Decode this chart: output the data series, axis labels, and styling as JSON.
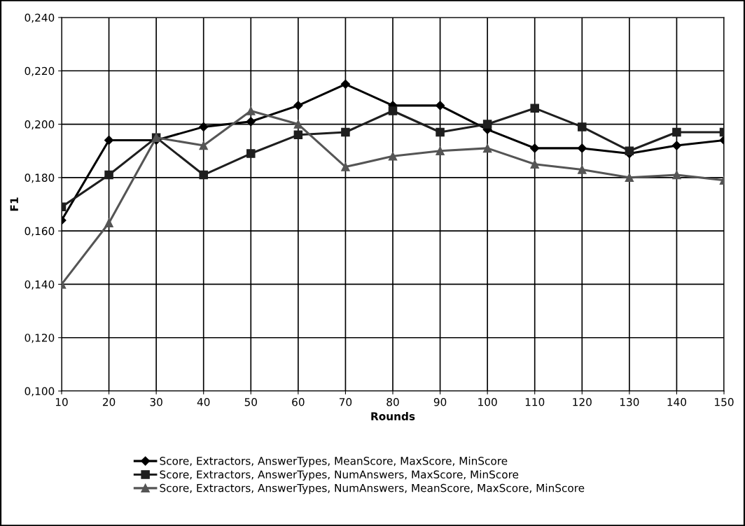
{
  "chart_data": {
    "type": "line",
    "xlabel": "Rounds",
    "ylabel": "F1",
    "x": [
      10,
      20,
      30,
      40,
      50,
      60,
      70,
      80,
      90,
      100,
      110,
      120,
      130,
      140,
      150
    ],
    "series": [
      {
        "name": "Score, Extractors, AnswerTypes, MeanScore, MaxScore, MinScore",
        "color": "#000000",
        "marker": "diamond",
        "values": [
          0.164,
          0.194,
          0.194,
          0.199,
          0.201,
          0.207,
          0.215,
          0.207,
          0.207,
          0.198,
          0.191,
          0.191,
          0.189,
          0.192,
          0.194
        ]
      },
      {
        "name": "Score, Extractors, AnswerTypes, NumAnswers, MaxScore, MinScore",
        "color": "#1e1e1e",
        "marker": "square",
        "values": [
          0.169,
          0.181,
          0.195,
          0.181,
          0.189,
          0.196,
          0.197,
          0.205,
          0.197,
          0.2,
          0.206,
          0.199,
          0.19,
          0.197,
          0.197
        ]
      },
      {
        "name": "Score, Extractors, AnswerTypes, NumAnswers, MeanScore, MaxScore, MinScore",
        "color": "#555555",
        "marker": "triangle",
        "values": [
          0.14,
          0.163,
          0.195,
          0.192,
          0.205,
          0.2,
          0.184,
          0.188,
          0.19,
          0.191,
          0.185,
          0.183,
          0.18,
          0.181,
          0.179
        ]
      }
    ],
    "xlim": [
      10,
      150
    ],
    "xticks": [
      10,
      20,
      30,
      40,
      50,
      60,
      70,
      80,
      90,
      100,
      110,
      120,
      130,
      140,
      150
    ],
    "ylim": [
      0.1,
      0.24
    ],
    "yticks": [
      {
        "value": 0.1,
        "label": "0,100"
      },
      {
        "value": 0.12,
        "label": "0,120"
      },
      {
        "value": 0.14,
        "label": "0,140"
      },
      {
        "value": 0.16,
        "label": "0,160"
      },
      {
        "value": 0.18,
        "label": "0,180"
      },
      {
        "value": 0.2,
        "label": "0,200"
      },
      {
        "value": 0.22,
        "label": "0,220"
      },
      {
        "value": 0.24,
        "label": "0,240"
      }
    ],
    "grid": true,
    "legend": "bottom",
    "line_style": "solid"
  }
}
